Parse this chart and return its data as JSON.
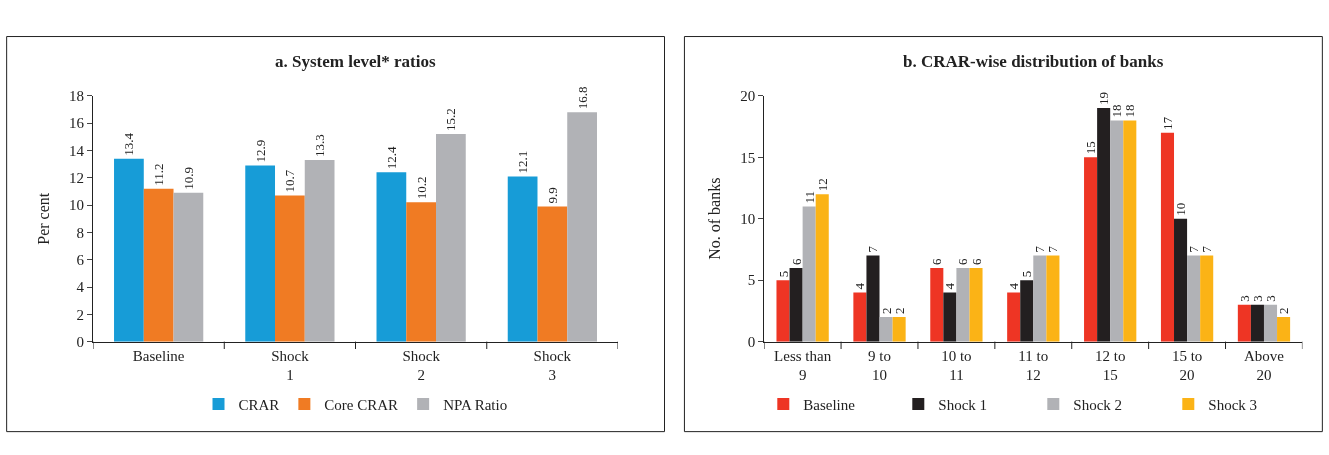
{
  "chart_data": [
    {
      "type": "bar",
      "title": "a. System level* ratios",
      "ylabel": "Per cent",
      "categories": [
        "Baseline",
        "Shock 1",
        "Shock 2",
        "Shock 3"
      ],
      "series": [
        {
          "name": "CRAR",
          "color": "#179cd7",
          "values": [
            13.4,
            12.9,
            12.4,
            12.1
          ]
        },
        {
          "name": "Core CRAR",
          "color": "#f07b23",
          "values": [
            11.2,
            10.7,
            10.2,
            9.9
          ]
        },
        {
          "name": "NPA Ratio",
          "color": "#b1b2b6",
          "values": [
            10.9,
            13.3,
            15.2,
            16.8
          ]
        }
      ],
      "ylim": [
        0,
        18
      ],
      "yticks": [
        0,
        2,
        4,
        6,
        8,
        10,
        12,
        14,
        16,
        18
      ],
      "data_labels": true,
      "legend": "bottom",
      "grid": false
    },
    {
      "type": "bar",
      "title": "b. CRAR-wise distribution of banks",
      "ylabel": "No. of banks",
      "categories": [
        "Less than 9",
        "9 to 10",
        "10 to 11",
        "11 to 12",
        "12 to 15",
        "15 to 20",
        "Above 20"
      ],
      "series": [
        {
          "name": "Baseline",
          "color": "#ee3524",
          "values": [
            5,
            4,
            6,
            4,
            15,
            17,
            3
          ]
        },
        {
          "name": "Shock 1",
          "color": "#231f20",
          "values": [
            6,
            7,
            4,
            5,
            19,
            10,
            3
          ]
        },
        {
          "name": "Shock 2",
          "color": "#b1b2b6",
          "values": [
            11,
            2,
            6,
            7,
            18,
            7,
            3
          ]
        },
        {
          "name": "Shock 3",
          "color": "#fbb316",
          "values": [
            12,
            2,
            6,
            7,
            18,
            7,
            2
          ]
        }
      ],
      "ylim": [
        0,
        20
      ],
      "yticks": [
        0,
        5,
        10,
        15,
        20
      ],
      "data_labels": true,
      "legend": "bottom",
      "grid": false
    }
  ]
}
